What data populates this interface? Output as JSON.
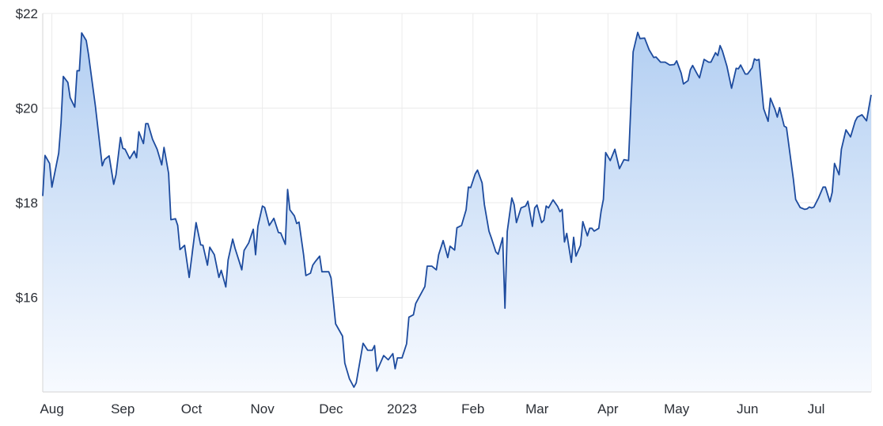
{
  "chart_data": {
    "type": "area",
    "title": "",
    "xlabel": "",
    "ylabel": "",
    "ylim": [
      14,
      22
    ],
    "xlim": [
      "2022-07-28",
      "2023-07-25"
    ],
    "grid": true,
    "legend": "none",
    "colors": {
      "line": "#1d4b9e",
      "fill_top": "#b3cff2",
      "fill_bottom": "#f7faff",
      "grid": "#ebebeb",
      "text": "#2b2f36"
    },
    "yticks": [
      {
        "value": 16,
        "label": "$16"
      },
      {
        "value": 18,
        "label": "$18"
      },
      {
        "value": 20,
        "label": "$20"
      },
      {
        "value": 22,
        "label": "$22"
      }
    ],
    "xticks": [
      {
        "date": "2022-08-01",
        "label": "Aug"
      },
      {
        "date": "2022-09-01",
        "label": "Sep"
      },
      {
        "date": "2022-10-01",
        "label": "Oct"
      },
      {
        "date": "2022-11-01",
        "label": "Nov"
      },
      {
        "date": "2022-12-01",
        "label": "Dec"
      },
      {
        "date": "2023-01-01",
        "label": "2023"
      },
      {
        "date": "2023-02-01",
        "label": "Feb"
      },
      {
        "date": "2023-03-01",
        "label": "Mar"
      },
      {
        "date": "2023-04-01",
        "label": "Apr"
      },
      {
        "date": "2023-05-01",
        "label": "May"
      },
      {
        "date": "2023-06-01",
        "label": "Jun"
      },
      {
        "date": "2023-07-01",
        "label": "Jul"
      }
    ],
    "points": [
      [
        "2022-07-28",
        18.14
      ],
      [
        "2022-07-29",
        19.0
      ],
      [
        "2022-07-31",
        18.83
      ],
      [
        "2022-08-01",
        18.33
      ],
      [
        "2022-08-04",
        19.05
      ],
      [
        "2022-08-05",
        19.68
      ],
      [
        "2022-08-06",
        20.67
      ],
      [
        "2022-08-08",
        20.54
      ],
      [
        "2022-08-09",
        20.22
      ],
      [
        "2022-08-11",
        20.02
      ],
      [
        "2022-08-12",
        20.79
      ],
      [
        "2022-08-13",
        20.79
      ],
      [
        "2022-08-14",
        21.59
      ],
      [
        "2022-08-16",
        21.43
      ],
      [
        "2022-08-17",
        21.14
      ],
      [
        "2022-08-20",
        20.05
      ],
      [
        "2022-08-23",
        18.78
      ],
      [
        "2022-08-24",
        18.91
      ],
      [
        "2022-08-26",
        18.99
      ],
      [
        "2022-08-28",
        18.39
      ],
      [
        "2022-08-29",
        18.59
      ],
      [
        "2022-08-31",
        19.38
      ],
      [
        "2022-09-01",
        19.15
      ],
      [
        "2022-09-02",
        19.13
      ],
      [
        "2022-09-04",
        18.93
      ],
      [
        "2022-09-06",
        19.09
      ],
      [
        "2022-09-07",
        18.95
      ],
      [
        "2022-09-08",
        19.5
      ],
      [
        "2022-09-10",
        19.25
      ],
      [
        "2022-09-11",
        19.67
      ],
      [
        "2022-09-12",
        19.67
      ],
      [
        "2022-09-14",
        19.34
      ],
      [
        "2022-09-16",
        19.13
      ],
      [
        "2022-09-18",
        18.8
      ],
      [
        "2022-09-19",
        19.17
      ],
      [
        "2022-09-21",
        18.62
      ],
      [
        "2022-09-22",
        17.64
      ],
      [
        "2022-09-24",
        17.66
      ],
      [
        "2022-09-25",
        17.52
      ],
      [
        "2022-09-26",
        17.01
      ],
      [
        "2022-09-28",
        17.1
      ],
      [
        "2022-09-30",
        16.42
      ],
      [
        "2022-10-03",
        17.58
      ],
      [
        "2022-10-05",
        17.11
      ],
      [
        "2022-10-06",
        17.1
      ],
      [
        "2022-10-08",
        16.68
      ],
      [
        "2022-10-09",
        17.06
      ],
      [
        "2022-10-11",
        16.9
      ],
      [
        "2022-10-13",
        16.42
      ],
      [
        "2022-10-14",
        16.57
      ],
      [
        "2022-10-16",
        16.22
      ],
      [
        "2022-10-17",
        16.79
      ],
      [
        "2022-10-19",
        17.23
      ],
      [
        "2022-10-20",
        17.04
      ],
      [
        "2022-10-22",
        16.74
      ],
      [
        "2022-10-23",
        16.58
      ],
      [
        "2022-10-24",
        16.99
      ],
      [
        "2022-10-26",
        17.15
      ],
      [
        "2022-10-28",
        17.44
      ],
      [
        "2022-10-29",
        16.9
      ],
      [
        "2022-10-30",
        17.5
      ],
      [
        "2022-11-01",
        17.93
      ],
      [
        "2022-11-02",
        17.9
      ],
      [
        "2022-11-04",
        17.52
      ],
      [
        "2022-11-06",
        17.67
      ],
      [
        "2022-11-08",
        17.37
      ],
      [
        "2022-11-09",
        17.36
      ],
      [
        "2022-11-11",
        17.12
      ],
      [
        "2022-11-12",
        18.28
      ],
      [
        "2022-11-13",
        17.85
      ],
      [
        "2022-11-15",
        17.72
      ],
      [
        "2022-11-16",
        17.56
      ],
      [
        "2022-11-17",
        17.59
      ],
      [
        "2022-11-19",
        16.9
      ],
      [
        "2022-11-20",
        16.46
      ],
      [
        "2022-11-22",
        16.51
      ],
      [
        "2022-11-23",
        16.68
      ],
      [
        "2022-11-24",
        16.75
      ],
      [
        "2022-11-26",
        16.87
      ],
      [
        "2022-11-27",
        16.54
      ],
      [
        "2022-11-30",
        16.54
      ],
      [
        "2022-12-01",
        16.41
      ],
      [
        "2022-12-03",
        15.44
      ],
      [
        "2022-12-06",
        15.18
      ],
      [
        "2022-12-07",
        14.61
      ],
      [
        "2022-12-09",
        14.28
      ],
      [
        "2022-12-11",
        14.1
      ],
      [
        "2022-12-12",
        14.19
      ],
      [
        "2022-12-15",
        15.03
      ],
      [
        "2022-12-17",
        14.88
      ],
      [
        "2022-12-19",
        14.88
      ],
      [
        "2022-12-20",
        14.98
      ],
      [
        "2022-12-21",
        14.44
      ],
      [
        "2022-12-24",
        14.77
      ],
      [
        "2022-12-26",
        14.68
      ],
      [
        "2022-12-28",
        14.81
      ],
      [
        "2022-12-29",
        14.49
      ],
      [
        "2022-12-30",
        14.72
      ],
      [
        "2023-01-01",
        14.72
      ],
      [
        "2023-01-03",
        15.02
      ],
      [
        "2023-01-04",
        15.58
      ],
      [
        "2023-01-06",
        15.63
      ],
      [
        "2023-01-07",
        15.87
      ],
      [
        "2023-01-11",
        16.23
      ],
      [
        "2023-01-12",
        16.66
      ],
      [
        "2023-01-14",
        16.66
      ],
      [
        "2023-01-16",
        16.58
      ],
      [
        "2023-01-17",
        16.9
      ],
      [
        "2023-01-19",
        17.2
      ],
      [
        "2023-01-21",
        16.84
      ],
      [
        "2023-01-22",
        17.08
      ],
      [
        "2023-01-24",
        17.0
      ],
      [
        "2023-01-25",
        17.47
      ],
      [
        "2023-01-27",
        17.52
      ],
      [
        "2023-01-29",
        17.85
      ],
      [
        "2023-01-30",
        18.33
      ],
      [
        "2023-01-31",
        18.32
      ],
      [
        "2023-02-02",
        18.61
      ],
      [
        "2023-02-03",
        18.69
      ],
      [
        "2023-02-05",
        18.42
      ],
      [
        "2023-02-06",
        17.96
      ],
      [
        "2023-02-08",
        17.4
      ],
      [
        "2023-02-09",
        17.26
      ],
      [
        "2023-02-11",
        16.96
      ],
      [
        "2023-02-12",
        16.91
      ],
      [
        "2023-02-14",
        17.26
      ],
      [
        "2023-02-15",
        15.77
      ],
      [
        "2023-02-16",
        17.39
      ],
      [
        "2023-02-18",
        18.1
      ],
      [
        "2023-02-19",
        17.96
      ],
      [
        "2023-02-20",
        17.58
      ],
      [
        "2023-02-22",
        17.89
      ],
      [
        "2023-02-24",
        17.93
      ],
      [
        "2023-02-25",
        18.03
      ],
      [
        "2023-02-27",
        17.5
      ],
      [
        "2023-02-28",
        17.89
      ],
      [
        "2023-03-01",
        17.95
      ],
      [
        "2023-03-03",
        17.58
      ],
      [
        "2023-03-04",
        17.63
      ],
      [
        "2023-03-05",
        17.93
      ],
      [
        "2023-03-06",
        17.89
      ],
      [
        "2023-03-08",
        18.06
      ],
      [
        "2023-03-10",
        17.92
      ],
      [
        "2023-03-11",
        17.81
      ],
      [
        "2023-03-12",
        17.86
      ],
      [
        "2023-03-13",
        17.17
      ],
      [
        "2023-03-14",
        17.35
      ],
      [
        "2023-03-16",
        16.74
      ],
      [
        "2023-03-17",
        17.27
      ],
      [
        "2023-03-18",
        16.87
      ],
      [
        "2023-03-20",
        17.1
      ],
      [
        "2023-03-21",
        17.6
      ],
      [
        "2023-03-23",
        17.3
      ],
      [
        "2023-03-24",
        17.46
      ],
      [
        "2023-03-25",
        17.46
      ],
      [
        "2023-03-26",
        17.4
      ],
      [
        "2023-03-28",
        17.46
      ],
      [
        "2023-03-29",
        17.82
      ],
      [
        "2023-03-30",
        18.07
      ],
      [
        "2023-03-31",
        19.06
      ],
      [
        "2023-04-02",
        18.89
      ],
      [
        "2023-04-04",
        19.13
      ],
      [
        "2023-04-06",
        18.72
      ],
      [
        "2023-04-08",
        18.91
      ],
      [
        "2023-04-10",
        18.89
      ],
      [
        "2023-04-12",
        21.19
      ],
      [
        "2023-04-14",
        21.6
      ],
      [
        "2023-04-15",
        21.47
      ],
      [
        "2023-04-17",
        21.48
      ],
      [
        "2023-04-19",
        21.23
      ],
      [
        "2023-04-21",
        21.07
      ],
      [
        "2023-04-22",
        21.08
      ],
      [
        "2023-04-24",
        20.97
      ],
      [
        "2023-04-26",
        20.97
      ],
      [
        "2023-04-28",
        20.91
      ],
      [
        "2023-04-30",
        20.92
      ],
      [
        "2023-05-01",
        21.0
      ],
      [
        "2023-05-03",
        20.74
      ],
      [
        "2023-05-04",
        20.51
      ],
      [
        "2023-05-06",
        20.58
      ],
      [
        "2023-05-07",
        20.81
      ],
      [
        "2023-05-08",
        20.9
      ],
      [
        "2023-05-10",
        20.72
      ],
      [
        "2023-05-11",
        20.64
      ],
      [
        "2023-05-13",
        21.03
      ],
      [
        "2023-05-15",
        20.97
      ],
      [
        "2023-05-16",
        20.97
      ],
      [
        "2023-05-18",
        21.17
      ],
      [
        "2023-05-19",
        21.11
      ],
      [
        "2023-05-20",
        21.32
      ],
      [
        "2023-05-21",
        21.21
      ],
      [
        "2023-05-23",
        20.88
      ],
      [
        "2023-05-25",
        20.42
      ],
      [
        "2023-05-27",
        20.84
      ],
      [
        "2023-05-28",
        20.83
      ],
      [
        "2023-05-29",
        20.91
      ],
      [
        "2023-05-31",
        20.72
      ],
      [
        "2023-06-01",
        20.72
      ],
      [
        "2023-06-03",
        20.85
      ],
      [
        "2023-06-04",
        21.04
      ],
      [
        "2023-06-05",
        21.01
      ],
      [
        "2023-06-06",
        21.03
      ],
      [
        "2023-06-08",
        19.99
      ],
      [
        "2023-06-10",
        19.72
      ],
      [
        "2023-06-11",
        20.21
      ],
      [
        "2023-06-13",
        19.97
      ],
      [
        "2023-06-14",
        19.81
      ],
      [
        "2023-06-15",
        20.01
      ],
      [
        "2023-06-17",
        19.62
      ],
      [
        "2023-06-18",
        19.59
      ],
      [
        "2023-06-21",
        18.5
      ],
      [
        "2023-06-22",
        18.07
      ],
      [
        "2023-06-24",
        17.9
      ],
      [
        "2023-06-26",
        17.86
      ],
      [
        "2023-06-27",
        17.87
      ],
      [
        "2023-06-28",
        17.91
      ],
      [
        "2023-06-29",
        17.89
      ],
      [
        "2023-06-30",
        17.91
      ],
      [
        "2023-07-02",
        18.1
      ],
      [
        "2023-07-04",
        18.33
      ],
      [
        "2023-07-05",
        18.33
      ],
      [
        "2023-07-07",
        18.02
      ],
      [
        "2023-07-08",
        18.22
      ],
      [
        "2023-07-09",
        18.83
      ],
      [
        "2023-07-11",
        18.59
      ],
      [
        "2023-07-12",
        19.13
      ],
      [
        "2023-07-14",
        19.54
      ],
      [
        "2023-07-16",
        19.39
      ],
      [
        "2023-07-18",
        19.72
      ],
      [
        "2023-07-19",
        19.81
      ],
      [
        "2023-07-21",
        19.86
      ],
      [
        "2023-07-23",
        19.73
      ],
      [
        "2023-07-25",
        20.28
      ]
    ]
  }
}
